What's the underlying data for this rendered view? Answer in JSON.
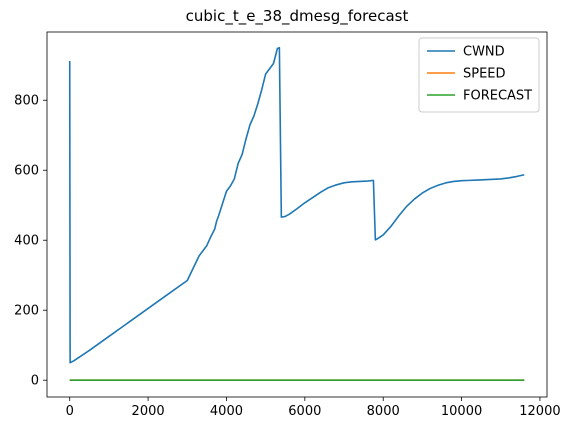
{
  "chart_data": {
    "type": "line",
    "title": "cubic_t_e_38_dmesg_forecast",
    "xlabel": "",
    "ylabel": "",
    "xlim": [
      -580,
      12180
    ],
    "ylim": [
      -48,
      995
    ],
    "xticks": [
      0,
      2000,
      4000,
      6000,
      8000,
      10000,
      12000
    ],
    "yticks": [
      0,
      200,
      400,
      600,
      800
    ],
    "grid": false,
    "legend_position": "top-right",
    "series": [
      {
        "name": "CWND",
        "color": "#1f77b4",
        "points": [
          [
            0,
            912
          ],
          [
            10,
            50
          ],
          [
            100,
            55
          ],
          [
            500,
            85
          ],
          [
            1000,
            125
          ],
          [
            1500,
            165
          ],
          [
            2000,
            205
          ],
          [
            2500,
            245
          ],
          [
            3000,
            285
          ],
          [
            3300,
            355
          ],
          [
            3400,
            370
          ],
          [
            3500,
            385
          ],
          [
            3600,
            410
          ],
          [
            3700,
            432
          ],
          [
            3750,
            455
          ],
          [
            3800,
            470
          ],
          [
            3900,
            505
          ],
          [
            4000,
            540
          ],
          [
            4100,
            555
          ],
          [
            4200,
            575
          ],
          [
            4300,
            620
          ],
          [
            4400,
            645
          ],
          [
            4500,
            690
          ],
          [
            4600,
            730
          ],
          [
            4700,
            755
          ],
          [
            4800,
            790
          ],
          [
            4900,
            830
          ],
          [
            5000,
            875
          ],
          [
            5100,
            890
          ],
          [
            5200,
            905
          ],
          [
            5270,
            935
          ],
          [
            5300,
            948
          ],
          [
            5350,
            950
          ],
          [
            5400,
            466
          ],
          [
            5500,
            468
          ],
          [
            5600,
            474
          ],
          [
            5800,
            490
          ],
          [
            6000,
            507
          ],
          [
            6200,
            522
          ],
          [
            6400,
            537
          ],
          [
            6600,
            550
          ],
          [
            6800,
            558
          ],
          [
            7000,
            564
          ],
          [
            7200,
            567
          ],
          [
            7400,
            568
          ],
          [
            7600,
            569
          ],
          [
            7750,
            571
          ],
          [
            7800,
            401
          ],
          [
            7850,
            404
          ],
          [
            8000,
            415
          ],
          [
            8200,
            440
          ],
          [
            8400,
            470
          ],
          [
            8600,
            497
          ],
          [
            8800,
            518
          ],
          [
            9000,
            535
          ],
          [
            9200,
            548
          ],
          [
            9400,
            557
          ],
          [
            9600,
            564
          ],
          [
            9800,
            568
          ],
          [
            10000,
            570
          ],
          [
            10200,
            571
          ],
          [
            10400,
            572
          ],
          [
            10600,
            573
          ],
          [
            10800,
            574
          ],
          [
            11000,
            575
          ],
          [
            11200,
            578
          ],
          [
            11400,
            582
          ],
          [
            11600,
            587
          ]
        ]
      },
      {
        "name": "SPEED",
        "color": "#ff7f0e",
        "points": [
          [
            0,
            0
          ],
          [
            11600,
            0
          ]
        ]
      },
      {
        "name": "FORECAST",
        "color": "#2ca02c",
        "points": [
          [
            0,
            0
          ],
          [
            11600,
            0
          ]
        ]
      }
    ]
  }
}
